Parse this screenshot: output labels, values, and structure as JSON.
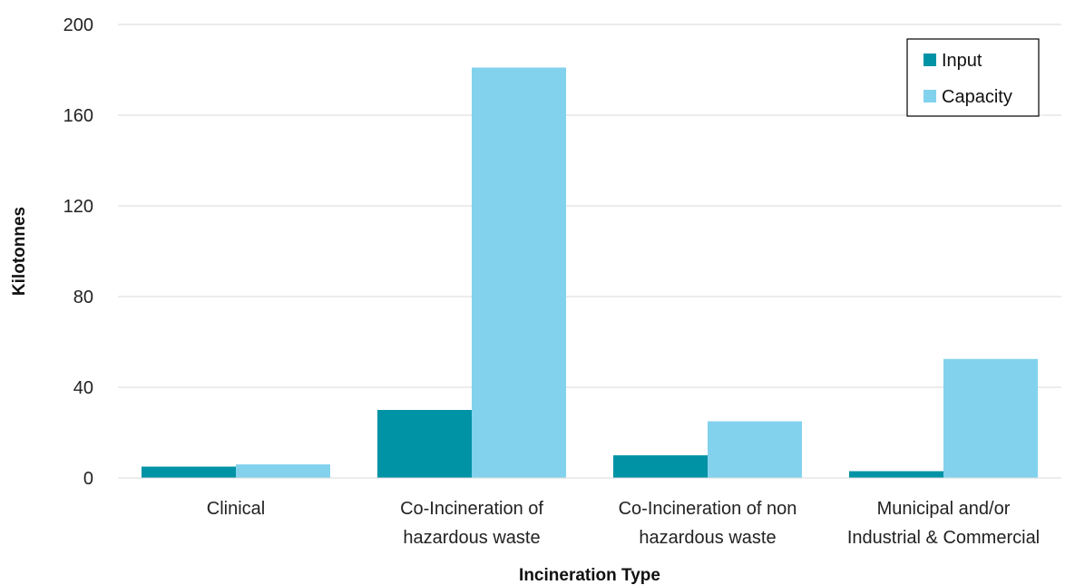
{
  "chart_data": {
    "type": "bar",
    "title": "",
    "xlabel": "Incineration Type",
    "ylabel": "Kilotonnes",
    "ylim": [
      0,
      200
    ],
    "yticks": [
      0,
      40,
      80,
      120,
      160,
      200
    ],
    "grid": true,
    "legend_position": "top-right",
    "categories": [
      [
        "Clinical"
      ],
      [
        "Co-Incineration of",
        "hazardous waste"
      ],
      [
        "Co-Incineration of non",
        "hazardous waste"
      ],
      [
        "Municipal and/or",
        "Industrial & Commercial"
      ]
    ],
    "series": [
      {
        "name": "Input",
        "color": "#0093A6",
        "values": [
          5,
          30,
          10,
          3
        ]
      },
      {
        "name": "Capacity",
        "color": "#82D2EE",
        "values": [
          6,
          181,
          25,
          52.5
        ]
      }
    ]
  }
}
